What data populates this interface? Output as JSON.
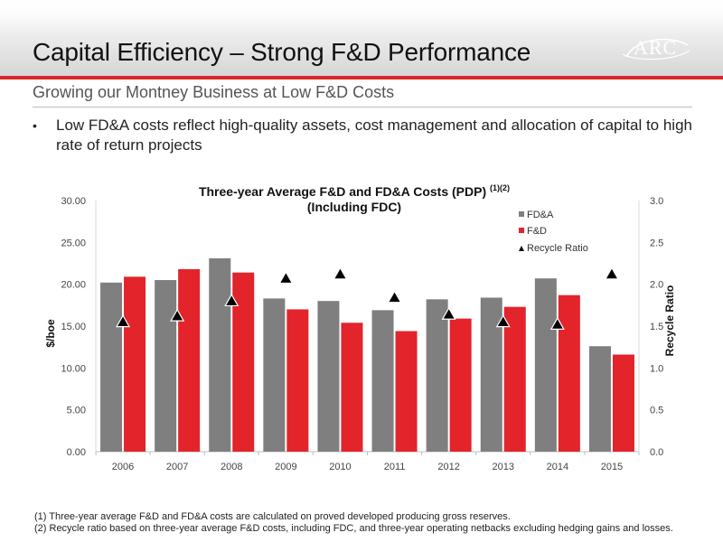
{
  "header": {
    "title": "Capital Efficiency – Strong F&D Performance",
    "logo_text": "ARC",
    "colors": {
      "accent": "#d8262a",
      "fda": "#7f7f7f",
      "fd": "#e3242b"
    }
  },
  "subtitle": "Growing our Montney Business at Low F&D Costs",
  "bullet": {
    "symbol": "•",
    "text": "Low FD&A costs reflect high-quality assets, cost management and allocation of capital to high rate of return projects"
  },
  "chart_data": {
    "type": "bar",
    "title_line1": "Three-year Average F&D and FD&A Costs (PDP)",
    "title_superscript": "(1)(2)",
    "title_line2": "(Including FDC)",
    "categories": [
      "2006",
      "2007",
      "2008",
      "2009",
      "2010",
      "2011",
      "2012",
      "2013",
      "2014",
      "2015"
    ],
    "series": [
      {
        "name": "FD&A",
        "values": [
          20.2,
          20.5,
          23.1,
          18.3,
          18.0,
          16.9,
          18.2,
          18.4,
          20.7,
          12.6
        ]
      },
      {
        "name": "F&D",
        "values": [
          20.9,
          21.8,
          21.4,
          17.0,
          15.4,
          14.4,
          15.9,
          17.3,
          18.7,
          11.6
        ]
      }
    ],
    "recycle_series": {
      "name": "Recycle Ratio",
      "values": [
        1.55,
        1.62,
        1.8,
        2.07,
        2.12,
        1.84,
        1.64,
        1.55,
        1.52,
        2.12
      ]
    },
    "ylabel": "$/boe",
    "y2label": "Recycle Ratio",
    "ylim": [
      0,
      30
    ],
    "y2lim": [
      0,
      3
    ],
    "yticks": [
      "30.00",
      "25.00",
      "20.00",
      "15.00",
      "10.00",
      "5.00",
      "0.00"
    ],
    "y2ticks": [
      "3.0",
      "2.5",
      "2.0",
      "1.5",
      "1.0",
      "0.5",
      "0.0"
    ],
    "legend_position": "top-right",
    "grid": false
  },
  "footnotes": [
    "(1)  Three-year average F&D and FD&A costs are calculated on proved developed producing gross reserves.",
    "(2)  Recycle ratio based on three-year average F&D costs, including FDC, and three-year operating netbacks excluding hedging gains and losses."
  ]
}
